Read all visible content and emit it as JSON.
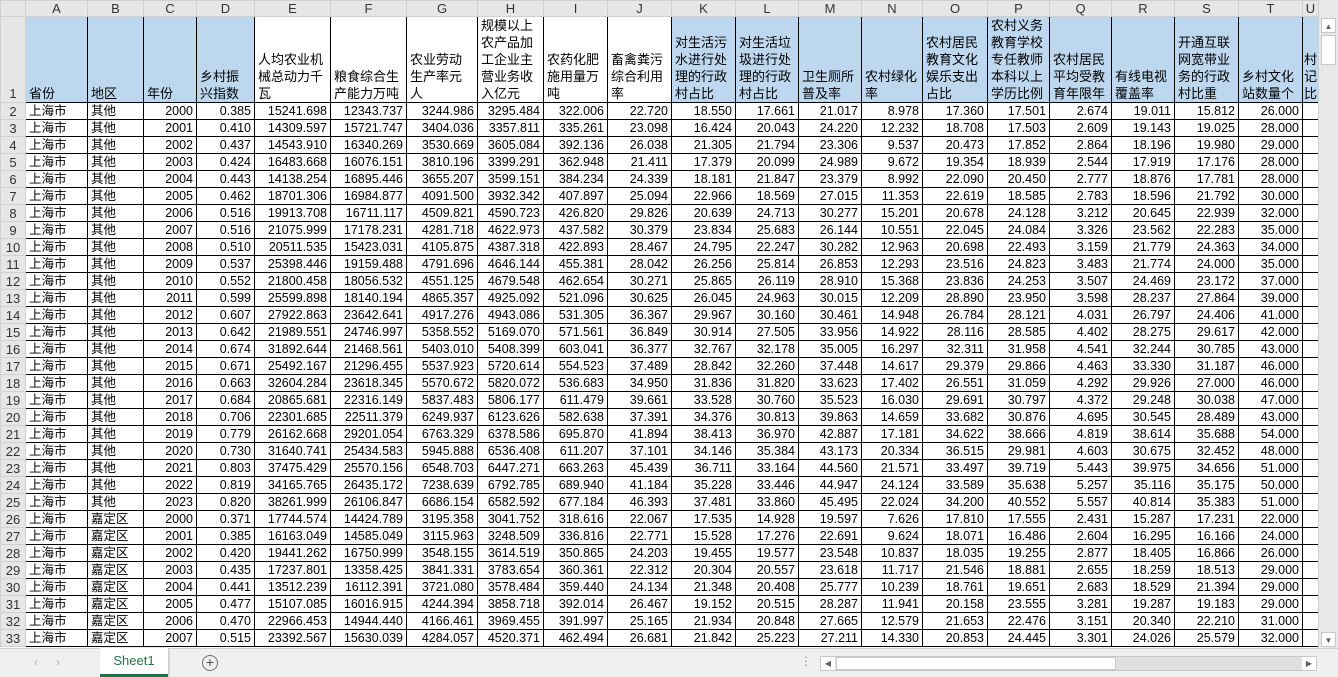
{
  "columns": [
    "A",
    "B",
    "C",
    "D",
    "E",
    "F",
    "G",
    "H",
    "I",
    "J",
    "K",
    "L",
    "M",
    "N",
    "O",
    "P",
    "Q",
    "R",
    "S",
    "T",
    "U"
  ],
  "header_row_number": "1",
  "headers": [
    "省份",
    "地区",
    "年份",
    "乡村振兴指数",
    "人均农业机械总动力千瓦",
    "粮食综合生产能力万吨",
    "农业劳动生产率元人",
    "规模以上农产品加工企业主营业务收入亿元",
    "农药化肥施用量万吨",
    "畜禽粪污综合利用率",
    "对生活污水进行处理的行政村占比",
    "对生活垃圾进行处理的行政村占比",
    "卫生厕所普及率",
    "农村绿化率",
    "农村居民教育文化娱乐支出占比",
    "农村义务教育学校专任教师本科以上学历比例",
    "农村居民平均受教育年限年",
    "有线电视覆盖率",
    "开通互联网宽带业务的行政村比重",
    "乡村文化站数量个",
    "村记比"
  ],
  "header_fill": {
    "blue": "#BDD7EE",
    "blue_columns": [
      "A",
      "B",
      "C",
      "D",
      "K",
      "L",
      "M",
      "N",
      "O",
      "P",
      "Q",
      "R",
      "S",
      "T",
      "U"
    ]
  },
  "rows": [
    [
      "2",
      "上海市",
      "其他",
      "2000",
      "0.385",
      "15241.698",
      "12343.737",
      "3244.986",
      "3295.484",
      "322.006",
      "22.720",
      "18.550",
      "17.661",
      "21.017",
      "8.978",
      "17.360",
      "17.501",
      "2.674",
      "19.011",
      "15.812",
      "26.000"
    ],
    [
      "3",
      "上海市",
      "其他",
      "2001",
      "0.410",
      "14309.597",
      "15721.747",
      "3404.036",
      "3357.811",
      "335.261",
      "23.098",
      "16.424",
      "20.043",
      "24.220",
      "12.232",
      "18.708",
      "17.503",
      "2.609",
      "19.143",
      "19.025",
      "28.000"
    ],
    [
      "4",
      "上海市",
      "其他",
      "2002",
      "0.437",
      "14543.910",
      "16340.269",
      "3530.669",
      "3605.084",
      "392.136",
      "26.038",
      "21.305",
      "21.794",
      "23.306",
      "9.537",
      "20.473",
      "17.852",
      "2.864",
      "18.196",
      "19.980",
      "29.000"
    ],
    [
      "5",
      "上海市",
      "其他",
      "2003",
      "0.424",
      "16483.668",
      "16076.151",
      "3810.196",
      "3399.291",
      "362.948",
      "21.411",
      "17.379",
      "20.099",
      "24.989",
      "9.672",
      "19.354",
      "18.939",
      "2.544",
      "17.919",
      "17.176",
      "28.000"
    ],
    [
      "6",
      "上海市",
      "其他",
      "2004",
      "0.443",
      "14138.254",
      "16895.446",
      "3655.207",
      "3599.151",
      "384.234",
      "24.339",
      "18.181",
      "21.847",
      "23.379",
      "8.992",
      "22.090",
      "20.450",
      "2.777",
      "18.876",
      "17.781",
      "28.000"
    ],
    [
      "7",
      "上海市",
      "其他",
      "2005",
      "0.462",
      "18701.306",
      "16984.877",
      "4091.500",
      "3932.342",
      "407.897",
      "25.094",
      "22.966",
      "18.569",
      "27.015",
      "11.353",
      "22.619",
      "18.585",
      "2.783",
      "18.596",
      "21.792",
      "30.000"
    ],
    [
      "8",
      "上海市",
      "其他",
      "2006",
      "0.516",
      "19913.708",
      "16711.117",
      "4509.821",
      "4590.723",
      "426.820",
      "29.826",
      "20.639",
      "24.713",
      "30.277",
      "15.201",
      "20.678",
      "24.128",
      "3.212",
      "20.645",
      "22.939",
      "32.000"
    ],
    [
      "9",
      "上海市",
      "其他",
      "2007",
      "0.516",
      "21075.999",
      "17178.231",
      "4281.718",
      "4622.973",
      "437.582",
      "30.379",
      "23.834",
      "25.683",
      "26.144",
      "10.551",
      "22.045",
      "24.084",
      "3.326",
      "23.562",
      "22.283",
      "35.000"
    ],
    [
      "10",
      "上海市",
      "其他",
      "2008",
      "0.510",
      "20511.535",
      "15423.031",
      "4105.875",
      "4387.318",
      "422.893",
      "28.467",
      "24.795",
      "22.247",
      "30.282",
      "12.963",
      "20.698",
      "22.493",
      "3.159",
      "21.779",
      "24.363",
      "34.000"
    ],
    [
      "11",
      "上海市",
      "其他",
      "2009",
      "0.537",
      "25398.446",
      "19159.488",
      "4791.696",
      "4646.144",
      "455.381",
      "28.042",
      "26.256",
      "25.814",
      "26.853",
      "12.293",
      "23.516",
      "24.823",
      "3.483",
      "21.774",
      "24.000",
      "35.000"
    ],
    [
      "12",
      "上海市",
      "其他",
      "2010",
      "0.552",
      "21800.458",
      "18056.532",
      "4551.125",
      "4679.548",
      "462.654",
      "30.271",
      "25.865",
      "26.119",
      "28.910",
      "15.368",
      "23.836",
      "24.253",
      "3.507",
      "24.469",
      "23.172",
      "37.000"
    ],
    [
      "13",
      "上海市",
      "其他",
      "2011",
      "0.599",
      "25599.898",
      "18140.194",
      "4865.357",
      "4925.092",
      "521.096",
      "30.625",
      "26.045",
      "24.963",
      "30.015",
      "12.209",
      "28.890",
      "23.950",
      "3.598",
      "28.237",
      "27.864",
      "39.000"
    ],
    [
      "14",
      "上海市",
      "其他",
      "2012",
      "0.607",
      "27922.863",
      "23642.641",
      "4917.276",
      "4943.086",
      "531.305",
      "36.367",
      "29.967",
      "30.160",
      "30.461",
      "14.948",
      "26.784",
      "28.121",
      "4.031",
      "26.797",
      "24.406",
      "41.000"
    ],
    [
      "15",
      "上海市",
      "其他",
      "2013",
      "0.642",
      "21989.551",
      "24746.997",
      "5358.552",
      "5169.070",
      "571.561",
      "36.849",
      "30.914",
      "27.505",
      "33.956",
      "14.922",
      "28.116",
      "28.585",
      "4.402",
      "28.275",
      "29.617",
      "42.000"
    ],
    [
      "16",
      "上海市",
      "其他",
      "2014",
      "0.674",
      "31892.644",
      "21468.561",
      "5403.010",
      "5408.399",
      "603.041",
      "36.377",
      "32.767",
      "32.178",
      "35.005",
      "16.297",
      "32.311",
      "31.958",
      "4.541",
      "32.244",
      "30.785",
      "43.000"
    ],
    [
      "17",
      "上海市",
      "其他",
      "2015",
      "0.671",
      "25492.167",
      "21296.455",
      "5537.923",
      "5720.614",
      "554.523",
      "37.489",
      "28.842",
      "32.260",
      "37.448",
      "14.617",
      "29.379",
      "29.866",
      "4.463",
      "33.330",
      "31.187",
      "46.000"
    ],
    [
      "18",
      "上海市",
      "其他",
      "2016",
      "0.663",
      "32604.284",
      "23618.345",
      "5570.672",
      "5820.072",
      "536.683",
      "34.950",
      "31.836",
      "31.820",
      "33.623",
      "17.402",
      "26.551",
      "31.059",
      "4.292",
      "29.926",
      "27.000",
      "46.000"
    ],
    [
      "19",
      "上海市",
      "其他",
      "2017",
      "0.684",
      "20865.681",
      "22316.149",
      "5837.483",
      "5806.177",
      "611.479",
      "39.661",
      "33.528",
      "30.760",
      "35.523",
      "16.030",
      "29.691",
      "30.797",
      "4.372",
      "29.248",
      "30.038",
      "47.000"
    ],
    [
      "20",
      "上海市",
      "其他",
      "2018",
      "0.706",
      "22301.685",
      "22511.379",
      "6249.937",
      "6123.626",
      "582.638",
      "37.391",
      "34.376",
      "30.813",
      "39.863",
      "14.659",
      "33.682",
      "30.876",
      "4.695",
      "30.545",
      "28.489",
      "43.000"
    ],
    [
      "21",
      "上海市",
      "其他",
      "2019",
      "0.779",
      "26162.668",
      "29201.054",
      "6763.329",
      "6378.586",
      "695.870",
      "41.894",
      "38.413",
      "36.970",
      "42.887",
      "17.181",
      "34.622",
      "38.666",
      "4.819",
      "38.614",
      "35.688",
      "54.000"
    ],
    [
      "22",
      "上海市",
      "其他",
      "2020",
      "0.730",
      "31640.741",
      "25434.583",
      "5945.888",
      "6536.408",
      "611.207",
      "37.101",
      "34.146",
      "35.384",
      "43.173",
      "20.334",
      "36.515",
      "29.981",
      "4.603",
      "30.675",
      "32.452",
      "48.000"
    ],
    [
      "23",
      "上海市",
      "其他",
      "2021",
      "0.803",
      "37475.429",
      "25570.156",
      "6548.703",
      "6447.271",
      "663.263",
      "45.439",
      "36.711",
      "33.164",
      "44.560",
      "21.571",
      "33.497",
      "39.719",
      "5.443",
      "39.975",
      "34.656",
      "51.000"
    ],
    [
      "24",
      "上海市",
      "其他",
      "2022",
      "0.819",
      "34165.765",
      "26435.172",
      "7238.639",
      "6792.785",
      "689.940",
      "41.184",
      "35.228",
      "33.446",
      "44.947",
      "24.124",
      "33.589",
      "35.638",
      "5.257",
      "35.116",
      "35.175",
      "50.000"
    ],
    [
      "25",
      "上海市",
      "其他",
      "2023",
      "0.820",
      "38261.999",
      "26106.847",
      "6686.154",
      "6582.592",
      "677.184",
      "46.393",
      "37.481",
      "33.860",
      "45.495",
      "22.024",
      "34.200",
      "40.552",
      "5.557",
      "40.814",
      "35.383",
      "51.000"
    ],
    [
      "26",
      "上海市",
      "嘉定区",
      "2000",
      "0.371",
      "17744.574",
      "14424.789",
      "3195.358",
      "3041.752",
      "318.616",
      "22.067",
      "17.535",
      "14.928",
      "19.597",
      "7.626",
      "17.810",
      "17.555",
      "2.431",
      "15.287",
      "17.231",
      "22.000"
    ],
    [
      "27",
      "上海市",
      "嘉定区",
      "2001",
      "0.385",
      "16163.049",
      "14585.049",
      "3115.963",
      "3248.509",
      "336.816",
      "22.771",
      "15.528",
      "17.276",
      "22.691",
      "9.624",
      "18.071",
      "16.486",
      "2.604",
      "16.295",
      "16.166",
      "24.000"
    ],
    [
      "28",
      "上海市",
      "嘉定区",
      "2002",
      "0.420",
      "19441.262",
      "16750.999",
      "3548.155",
      "3614.519",
      "350.865",
      "24.203",
      "19.455",
      "19.577",
      "23.548",
      "10.837",
      "18.035",
      "19.255",
      "2.877",
      "18.405",
      "16.866",
      "26.000"
    ],
    [
      "29",
      "上海市",
      "嘉定区",
      "2003",
      "0.435",
      "17237.801",
      "13358.425",
      "3841.331",
      "3783.654",
      "360.361",
      "22.312",
      "20.304",
      "20.557",
      "23.618",
      "11.717",
      "21.546",
      "18.881",
      "2.655",
      "18.259",
      "18.513",
      "29.000"
    ],
    [
      "30",
      "上海市",
      "嘉定区",
      "2004",
      "0.441",
      "13512.239",
      "16112.391",
      "3721.080",
      "3578.484",
      "359.440",
      "24.134",
      "21.348",
      "20.408",
      "25.777",
      "10.239",
      "18.761",
      "19.651",
      "2.683",
      "18.529",
      "21.394",
      "29.000"
    ],
    [
      "31",
      "上海市",
      "嘉定区",
      "2005",
      "0.477",
      "15107.085",
      "16016.915",
      "4244.394",
      "3858.718",
      "392.014",
      "26.467",
      "19.152",
      "20.515",
      "28.287",
      "11.941",
      "20.158",
      "23.555",
      "3.281",
      "19.287",
      "19.183",
      "29.000"
    ],
    [
      "32",
      "上海市",
      "嘉定区",
      "2006",
      "0.470",
      "22966.453",
      "14944.440",
      "4166.461",
      "3969.455",
      "391.997",
      "25.165",
      "21.934",
      "20.848",
      "27.665",
      "12.579",
      "21.653",
      "22.476",
      "3.151",
      "20.340",
      "22.210",
      "31.000"
    ],
    [
      "33",
      "上海市",
      "嘉定区",
      "2007",
      "0.515",
      "23392.567",
      "15630.039",
      "4284.057",
      "4520.371",
      "462.494",
      "26.681",
      "21.842",
      "25.223",
      "27.211",
      "14.330",
      "20.853",
      "24.445",
      "3.301",
      "24.026",
      "25.579",
      "32.000"
    ]
  ],
  "sheet_tabs": [
    {
      "label": "Sheet1",
      "active": true
    }
  ],
  "icons": {
    "add_sheet": "plus-circle-icon",
    "prev": "chevron-left-icon",
    "next": "chevron-right-icon",
    "options": "more-dots-icon"
  },
  "accent_color": "#217346"
}
